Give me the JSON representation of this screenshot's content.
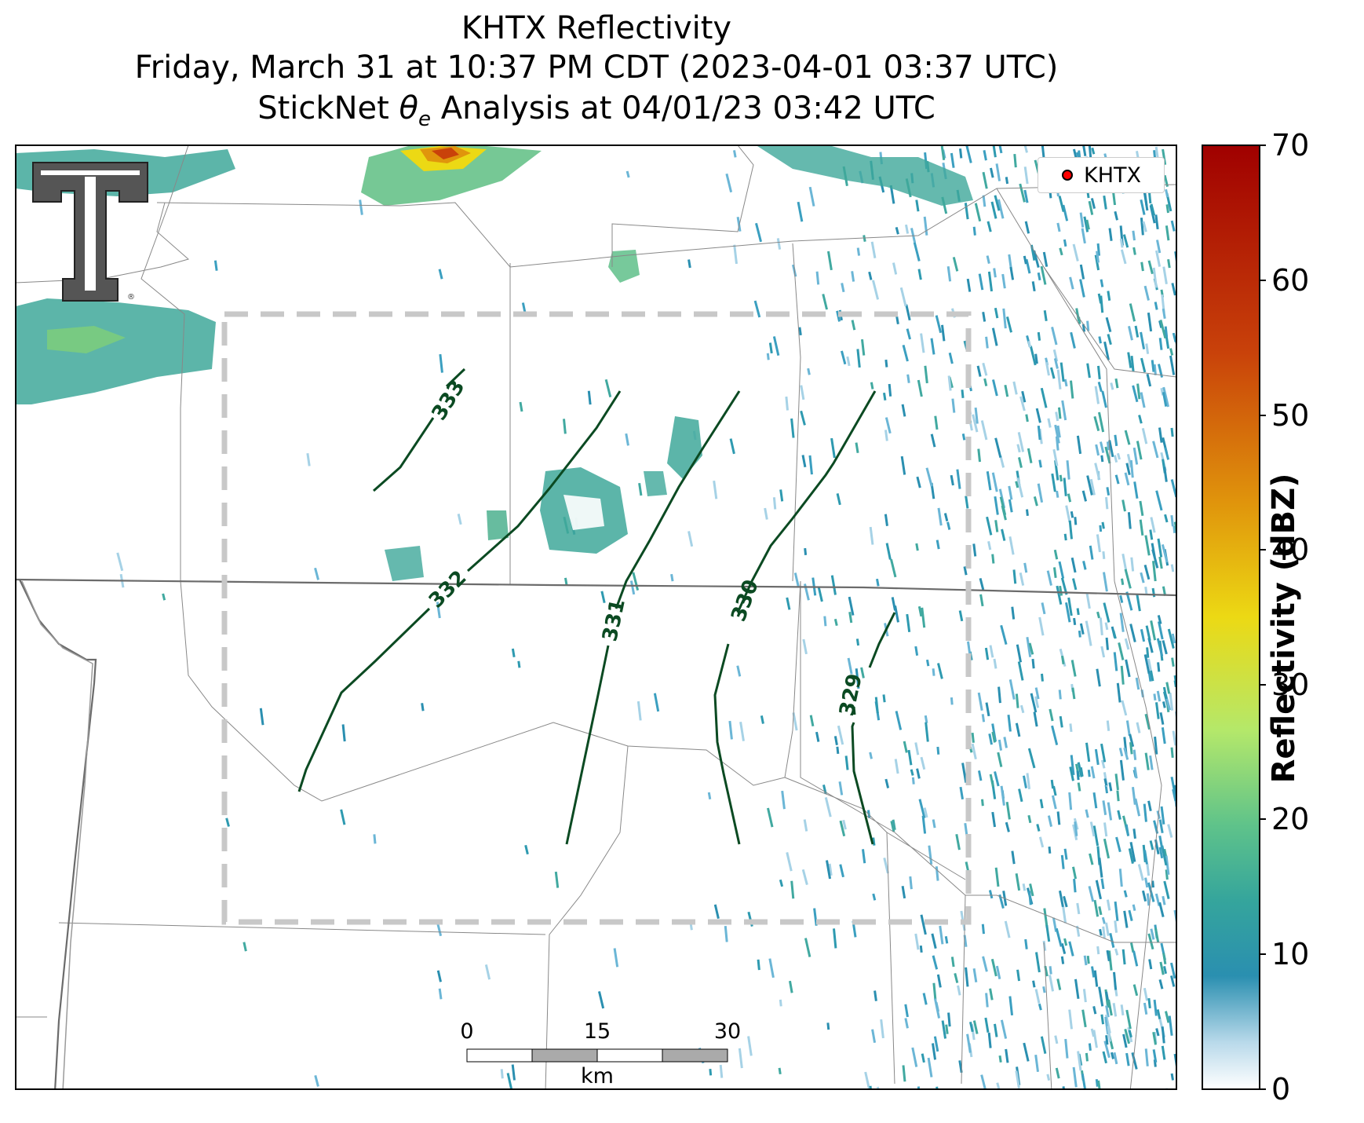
{
  "title": {
    "line1": "KHTX Reflectivity",
    "line2": "Friday, March 31 at 10:37 PM CDT (2023-04-01 03:37 UTC)",
    "line3_prefix": "StickNet ",
    "line3_symbol": "θ",
    "line3_sub": "e",
    "line3_suffix": " Analysis at 04/01/23 03:42 UTC"
  },
  "legend": {
    "station_label": "KHTX",
    "marker_color": "#ff0000"
  },
  "colorbar": {
    "label": "Reflectivity (dBZ)",
    "ticks": [
      "0",
      "10",
      "20",
      "30",
      "40",
      "50",
      "60",
      "70"
    ],
    "min": 0,
    "max": 70,
    "colors": [
      "#ffffff",
      "#2a8fb0",
      "#47b09a",
      "#96dd7a",
      "#f4ee3c",
      "#e89a10",
      "#c8380a",
      "#a00000"
    ]
  },
  "contours": {
    "color": "#0b4a22",
    "labels": [
      "333",
      "332",
      "331",
      "330",
      "329"
    ]
  },
  "scalebar": {
    "ticks": [
      "0",
      "15",
      "30"
    ],
    "unit": "km"
  },
  "logo": {
    "text": "TT",
    "trademark": "®"
  },
  "colors": {
    "analysis_box": "#c8c8c8",
    "county_lines": "#888888",
    "state_line": "#6b6b6b"
  }
}
